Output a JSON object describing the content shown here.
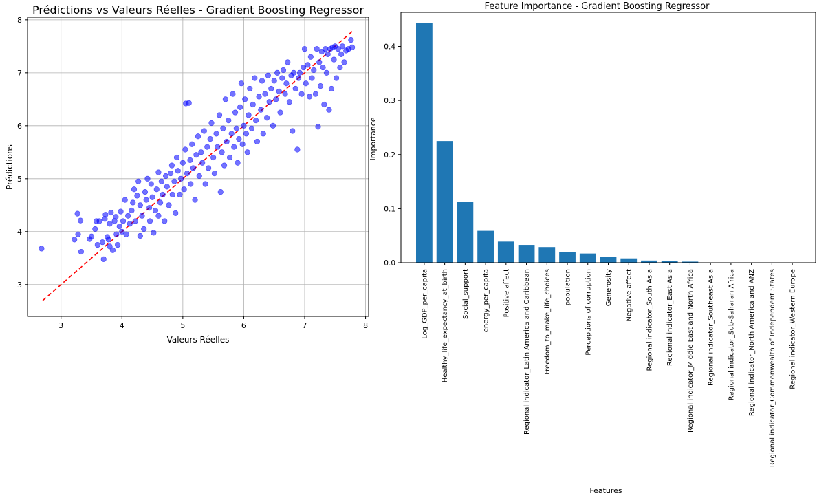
{
  "chart_data": [
    {
      "type": "scatter",
      "title": "Prédictions vs Valeurs Réelles - Gradient Boosting Regressor",
      "xlabel": "Valeurs Réelles",
      "ylabel": "Prédictions",
      "xlim": [
        2.45,
        8.05
      ],
      "ylim": [
        2.4,
        8.05
      ],
      "xticks": [
        "3",
        "4",
        "5",
        "6",
        "7",
        "8"
      ],
      "yticks": [
        "3",
        "4",
        "5",
        "6",
        "7",
        "8"
      ],
      "grid": true,
      "point_color": "#0000ff",
      "reference_line": {
        "x": [
          2.7,
          7.8
        ],
        "y": [
          2.7,
          7.8
        ],
        "color": "#ff0000",
        "style": "dashed"
      },
      "points": [
        [
          2.68,
          3.68
        ],
        [
          3.22,
          3.85
        ],
        [
          3.27,
          4.34
        ],
        [
          3.28,
          3.95
        ],
        [
          3.32,
          4.21
        ],
        [
          3.33,
          3.62
        ],
        [
          3.47,
          3.86
        ],
        [
          3.5,
          3.91
        ],
        [
          3.56,
          4.05
        ],
        [
          3.58,
          4.2
        ],
        [
          3.6,
          3.75
        ],
        [
          3.63,
          4.2
        ],
        [
          3.68,
          3.8
        ],
        [
          3.7,
          3.48
        ],
        [
          3.72,
          4.24
        ],
        [
          3.73,
          4.32
        ],
        [
          3.76,
          3.9
        ],
        [
          3.78,
          3.85
        ],
        [
          3.8,
          4.15
        ],
        [
          3.8,
          3.72
        ],
        [
          3.82,
          4.36
        ],
        [
          3.85,
          3.65
        ],
        [
          3.88,
          4.2
        ],
        [
          3.9,
          4.28
        ],
        [
          3.91,
          3.95
        ],
        [
          3.93,
          3.75
        ],
        [
          3.96,
          4.1
        ],
        [
          3.98,
          4.38
        ],
        [
          4.0,
          4.0
        ],
        [
          4.02,
          4.2
        ],
        [
          4.05,
          4.6
        ],
        [
          4.07,
          3.95
        ],
        [
          4.1,
          4.3
        ],
        [
          4.13,
          4.15
        ],
        [
          4.16,
          4.4
        ],
        [
          4.18,
          4.55
        ],
        [
          4.2,
          4.8
        ],
        [
          4.22,
          4.2
        ],
        [
          4.25,
          4.68
        ],
        [
          4.27,
          4.95
        ],
        [
          4.3,
          3.92
        ],
        [
          4.3,
          4.5
        ],
        [
          4.33,
          4.3
        ],
        [
          4.36,
          4.05
        ],
        [
          4.38,
          4.75
        ],
        [
          4.4,
          4.6
        ],
        [
          4.42,
          5.0
        ],
        [
          4.45,
          4.45
        ],
        [
          4.46,
          4.2
        ],
        [
          4.48,
          4.9
        ],
        [
          4.5,
          4.65
        ],
        [
          4.52,
          3.98
        ],
        [
          4.55,
          4.4
        ],
        [
          4.57,
          4.8
        ],
        [
          4.6,
          5.12
        ],
        [
          4.6,
          4.3
        ],
        [
          4.63,
          4.55
        ],
        [
          4.65,
          4.95
        ],
        [
          4.67,
          4.7
        ],
        [
          4.7,
          4.2
        ],
        [
          4.72,
          5.05
        ],
        [
          4.74,
          4.85
        ],
        [
          4.77,
          4.5
        ],
        [
          4.8,
          5.1
        ],
        [
          4.82,
          5.25
        ],
        [
          4.83,
          4.7
        ],
        [
          4.86,
          4.95
        ],
        [
          4.88,
          4.35
        ],
        [
          4.9,
          5.4
        ],
        [
          4.92,
          5.15
        ],
        [
          4.95,
          4.7
        ],
        [
          4.97,
          5.0
        ],
        [
          5.0,
          5.3
        ],
        [
          5.02,
          4.8
        ],
        [
          5.04,
          5.55
        ],
        [
          5.05,
          6.42
        ],
        [
          5.07,
          5.1
        ],
        [
          5.1,
          6.43
        ],
        [
          5.12,
          5.35
        ],
        [
          5.13,
          4.9
        ],
        [
          5.15,
          5.65
        ],
        [
          5.17,
          5.2
        ],
        [
          5.2,
          4.6
        ],
        [
          5.22,
          5.45
        ],
        [
          5.25,
          5.8
        ],
        [
          5.27,
          5.05
        ],
        [
          5.3,
          5.5
        ],
        [
          5.32,
          5.3
        ],
        [
          5.35,
          5.9
        ],
        [
          5.37,
          4.9
        ],
        [
          5.4,
          5.6
        ],
        [
          5.42,
          5.2
        ],
        [
          5.45,
          5.75
        ],
        [
          5.47,
          6.05
        ],
        [
          5.5,
          5.4
        ],
        [
          5.52,
          5.1
        ],
        [
          5.55,
          5.85
        ],
        [
          5.57,
          5.6
        ],
        [
          5.6,
          6.2
        ],
        [
          5.62,
          4.75
        ],
        [
          5.64,
          5.5
        ],
        [
          5.66,
          5.95
        ],
        [
          5.68,
          5.25
        ],
        [
          5.7,
          6.5
        ],
        [
          5.72,
          5.7
        ],
        [
          5.75,
          6.1
        ],
        [
          5.77,
          5.4
        ],
        [
          5.8,
          5.85
        ],
        [
          5.82,
          6.6
        ],
        [
          5.84,
          5.6
        ],
        [
          5.86,
          6.25
        ],
        [
          5.88,
          5.95
        ],
        [
          5.9,
          5.3
        ],
        [
          5.92,
          5.75
        ],
        [
          5.94,
          6.35
        ],
        [
          5.96,
          6.8
        ],
        [
          5.98,
          5.65
        ],
        [
          6.0,
          6.0
        ],
        [
          6.02,
          6.5
        ],
        [
          6.04,
          5.85
        ],
        [
          6.06,
          5.5
        ],
        [
          6.08,
          6.2
        ],
        [
          6.1,
          6.7
        ],
        [
          6.13,
          5.95
        ],
        [
          6.15,
          6.4
        ],
        [
          6.18,
          6.9
        ],
        [
          6.2,
          6.1
        ],
        [
          6.22,
          5.7
        ],
        [
          6.25,
          6.55
        ],
        [
          6.28,
          6.3
        ],
        [
          6.3,
          6.85
        ],
        [
          6.32,
          5.85
        ],
        [
          6.35,
          6.6
        ],
        [
          6.38,
          6.15
        ],
        [
          6.4,
          6.95
        ],
        [
          6.42,
          6.45
        ],
        [
          6.45,
          6.7
        ],
        [
          6.48,
          6.0
        ],
        [
          6.5,
          6.85
        ],
        [
          6.53,
          6.5
        ],
        [
          6.55,
          7.0
        ],
        [
          6.58,
          6.65
        ],
        [
          6.6,
          6.25
        ],
        [
          6.63,
          6.9
        ],
        [
          6.65,
          7.05
        ],
        [
          6.68,
          6.6
        ],
        [
          6.7,
          6.8
        ],
        [
          6.72,
          7.2
        ],
        [
          6.75,
          6.45
        ],
        [
          6.78,
          6.95
        ],
        [
          6.8,
          5.9
        ],
        [
          6.82,
          7.0
        ],
        [
          6.85,
          6.7
        ],
        [
          6.88,
          5.55
        ],
        [
          6.9,
          6.9
        ],
        [
          6.92,
          7.0
        ],
        [
          6.95,
          6.6
        ],
        [
          6.98,
          7.1
        ],
        [
          7.0,
          7.45
        ],
        [
          7.02,
          6.8
        ],
        [
          7.05,
          7.15
        ],
        [
          7.08,
          6.55
        ],
        [
          7.1,
          7.3
        ],
        [
          7.12,
          6.9
        ],
        [
          7.15,
          7.05
        ],
        [
          7.18,
          6.6
        ],
        [
          7.2,
          7.45
        ],
        [
          7.22,
          5.98
        ],
        [
          7.24,
          7.2
        ],
        [
          7.26,
          6.75
        ],
        [
          7.28,
          7.4
        ],
        [
          7.3,
          7.1
        ],
        [
          7.32,
          6.4
        ],
        [
          7.34,
          7.45
        ],
        [
          7.36,
          7.0
        ],
        [
          7.38,
          7.35
        ],
        [
          7.4,
          6.3
        ],
        [
          7.42,
          7.45
        ],
        [
          7.44,
          6.7
        ],
        [
          7.46,
          7.48
        ],
        [
          7.48,
          7.25
        ],
        [
          7.5,
          7.5
        ],
        [
          7.52,
          6.9
        ],
        [
          7.55,
          7.45
        ],
        [
          7.58,
          7.1
        ],
        [
          7.6,
          7.35
        ],
        [
          7.62,
          7.5
        ],
        [
          7.65,
          7.2
        ],
        [
          7.68,
          7.42
        ],
        [
          7.72,
          7.45
        ],
        [
          7.78,
          7.48
        ],
        [
          7.76,
          7.62
        ]
      ]
    },
    {
      "type": "bar",
      "title": "Feature Importance - Gradient Boosting Regressor",
      "xlabel": "Features",
      "ylabel": "Importance",
      "ylim": [
        0,
        0.463
      ],
      "yticks": [
        "0.0",
        "0.1",
        "0.2",
        "0.3",
        "0.4"
      ],
      "bar_color": "#1f77b4",
      "grid": false,
      "categories": [
        "Log_GDP_per_capita",
        "Healthy_life_expectancy_at_birth",
        "Social_support",
        "energy_per_capita",
        "Positive affect",
        "Regional indicator_Latin America and Caribbean",
        "Freedom_to_make_life_choices",
        "population",
        "Perceptions of corruption",
        "Generosity",
        "Negative affect",
        "Regional indicator_South Asia",
        "Regional indicator_East Asia",
        "Regional indicator_Middle East and North Africa",
        "Regional indicator_Southeast Asia",
        "Regional indicator_Sub-Saharan Africa",
        "Regional indicator_North America and ANZ",
        "Regional indicator_Commonwealth of Independent States",
        "Regional indicator_Western Europe"
      ],
      "values": [
        0.443,
        0.225,
        0.112,
        0.059,
        0.039,
        0.033,
        0.029,
        0.02,
        0.017,
        0.011,
        0.008,
        0.004,
        0.003,
        0.002,
        0.0005,
        0.0004,
        0.0003,
        0.0002,
        0.0001
      ]
    }
  ]
}
